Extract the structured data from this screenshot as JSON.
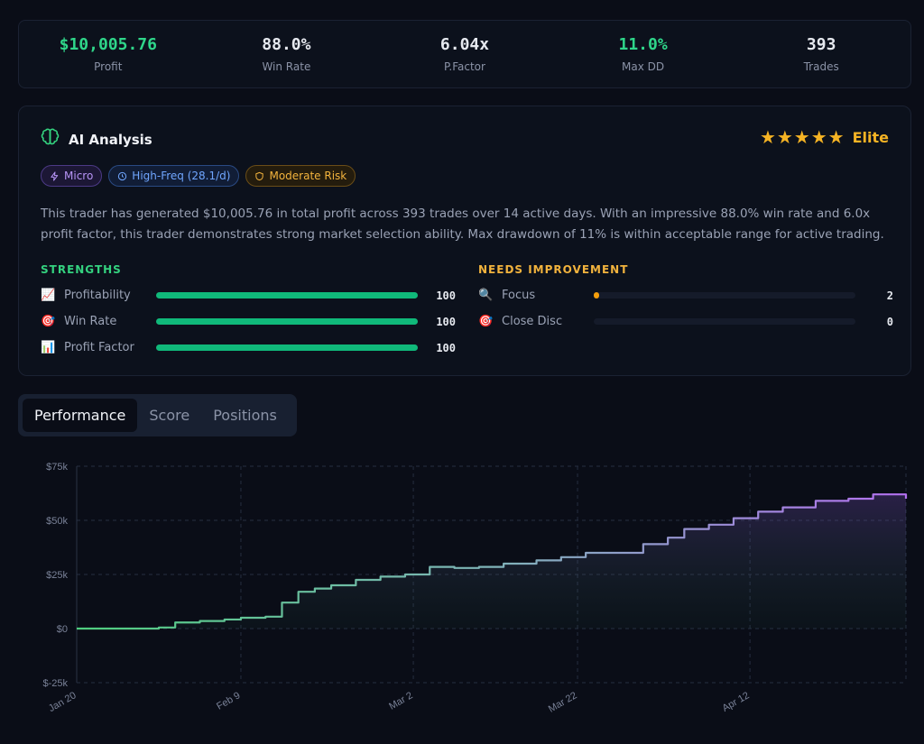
{
  "stats": [
    {
      "value": "$10,005.76",
      "label": "Profit",
      "color": "#2fd68a"
    },
    {
      "value": "88.0%",
      "label": "Win Rate",
      "color": "#f1f3f8"
    },
    {
      "value": "6.04x",
      "label": "P.Factor",
      "color": "#f1f3f8"
    },
    {
      "value": "11.0%",
      "label": "Max DD",
      "color": "#2fd68a"
    },
    {
      "value": "393",
      "label": "Trades",
      "color": "#f1f3f8"
    }
  ],
  "analysis": {
    "title": "AI Analysis",
    "icon": "brain-icon",
    "stars": "★★★★★",
    "rating": "Elite",
    "badges": [
      {
        "label": "Micro",
        "icon": "lightning-icon"
      },
      {
        "label": "High-Freq (28.1/d)",
        "icon": "clock-icon"
      },
      {
        "label": "Moderate Risk",
        "icon": "shield-icon"
      }
    ],
    "description": "This trader has generated $10,005.76 in total profit across 393 trades over 14 active days. With an impressive 88.0% win rate and 6.0x profit factor, this trader demonstrates strong market selection ability. Max drawdown of 11% is within acceptable range for active trading.",
    "strengths": {
      "title": "STRENGTHS",
      "items": [
        {
          "icon": "📈",
          "label": "Profitability",
          "value": "100",
          "score": 100
        },
        {
          "icon": "🎯",
          "label": "Win Rate",
          "value": "100",
          "score": 100
        },
        {
          "icon": "📊",
          "label": "Profit Factor",
          "value": "100",
          "score": 100
        }
      ]
    },
    "improvements": {
      "title": "NEEDS IMPROVEMENT",
      "items": [
        {
          "icon": "🔍",
          "label": "Focus",
          "value": "2",
          "score": 2
        },
        {
          "icon": "🎯",
          "label": "Close Disc",
          "value": "0",
          "score": 0
        }
      ]
    }
  },
  "tabs": [
    {
      "label": "Performance",
      "active": true
    },
    {
      "label": "Score",
      "active": false
    },
    {
      "label": "Positions",
      "active": false
    }
  ],
  "chart_data": {
    "type": "area",
    "y_ticks": [
      "$75k",
      "$50k",
      "$25k",
      "$0",
      "$-25k"
    ],
    "y_tick_values": [
      75000,
      50000,
      25000,
      0,
      -25000
    ],
    "ylim": [
      -25000,
      75000
    ],
    "x_ticks": [
      "Jan 20",
      "Feb 9",
      "Mar 2",
      "Mar 22",
      "Apr 12"
    ],
    "x": [
      "Jan 20",
      "Jan 25",
      "Jan 30",
      "Feb 1",
      "Feb 4",
      "Feb 7",
      "Feb 9",
      "Feb 12",
      "Feb 14",
      "Feb 16",
      "Feb 18",
      "Feb 20",
      "Feb 23",
      "Feb 26",
      "Mar 1",
      "Mar 4",
      "Mar 7",
      "Mar 10",
      "Mar 13",
      "Mar 17",
      "Mar 20",
      "Mar 23",
      "Mar 27",
      "Mar 30",
      "Apr 2",
      "Apr 4",
      "Apr 7",
      "Apr 10",
      "Apr 13",
      "Apr 16",
      "Apr 20",
      "Apr 24",
      "Apr 27",
      "May 1"
    ],
    "values": [
      0,
      0,
      500,
      2800,
      3500,
      4200,
      5000,
      5500,
      12000,
      17000,
      18500,
      20000,
      22500,
      24000,
      25000,
      28500,
      28000,
      28500,
      30000,
      31500,
      33000,
      35000,
      35000,
      39000,
      42000,
      46000,
      48000,
      51000,
      54000,
      56000,
      59000,
      60000,
      62000,
      60000
    ],
    "grid": true,
    "colors": {
      "start": "#4fce7f",
      "end": "#b370f0"
    }
  }
}
